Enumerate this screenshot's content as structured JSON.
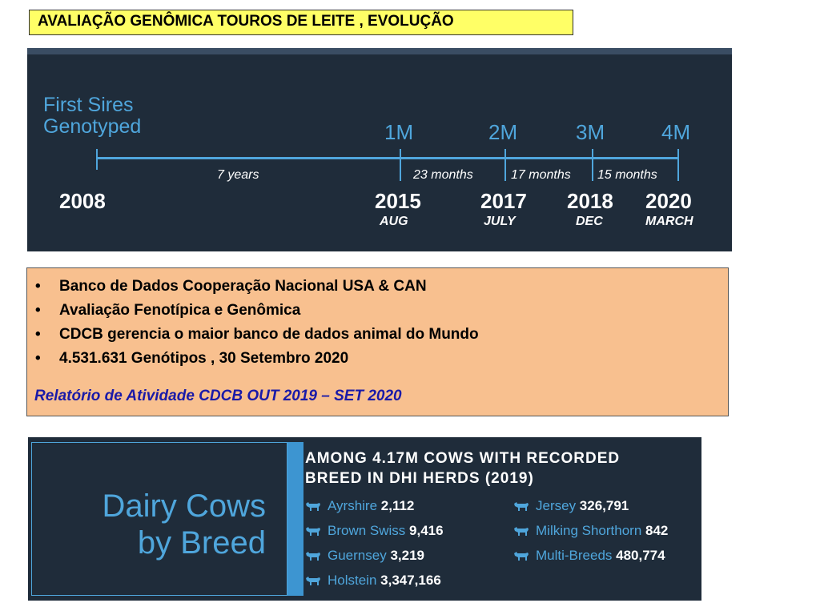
{
  "header": {
    "title": "AVALIAÇÃO GENÔMICA TOUROS DE LEITE , EVOLUÇÃO"
  },
  "timeline": {
    "heading_line1": "First Sires",
    "heading_line2": "Genotyped",
    "milestones": [
      "1M",
      "2M",
      "3M",
      "4M"
    ],
    "durations": [
      "7 years",
      "23 months",
      "17 months",
      "15 months"
    ],
    "years": [
      "2008",
      "2015",
      "2017",
      "2018",
      "2020"
    ],
    "months": [
      "AUG",
      "JULY",
      "DEC",
      "MARCH"
    ]
  },
  "info": {
    "bullets": [
      "Banco de Dados Cooperação Nacional USA & CAN",
      "Avaliação Fenotípica e Genômica",
      "CDCB gerencia o maior banco de dados animal do Mundo",
      "4.531.631 Genótipos , 30 Setembro 2020"
    ],
    "bullet_symbol": "•",
    "report": "Relatório de Atividade CDCB OUT 2019 – SET 2020"
  },
  "breeds": {
    "title_line1": "Dairy Cows",
    "title_line2": "by Breed",
    "heading_line1": "AMONG 4.17M COWS WITH RECORDED",
    "heading_line2": "BREED IN DHI HERDS (2019)",
    "icon": "cow-icon",
    "left_list": [
      {
        "name": "Ayrshire",
        "count": "2,112"
      },
      {
        "name": "Brown Swiss",
        "count": "9,416"
      },
      {
        "name": "Guernsey",
        "count": "3,219"
      },
      {
        "name": "Holstein",
        "count": "3,347,166"
      }
    ],
    "right_list": [
      {
        "name": "Jersey",
        "count": "326,791"
      },
      {
        "name": "Milking Shorthorn",
        "count": "842"
      },
      {
        "name": "Multi-Breeds",
        "count": "480,774"
      }
    ]
  },
  "colors": {
    "accent": "#4fa6dc",
    "panel": "#1f2c3a",
    "highlight": "#ffff66",
    "note": "#f8c08f"
  }
}
